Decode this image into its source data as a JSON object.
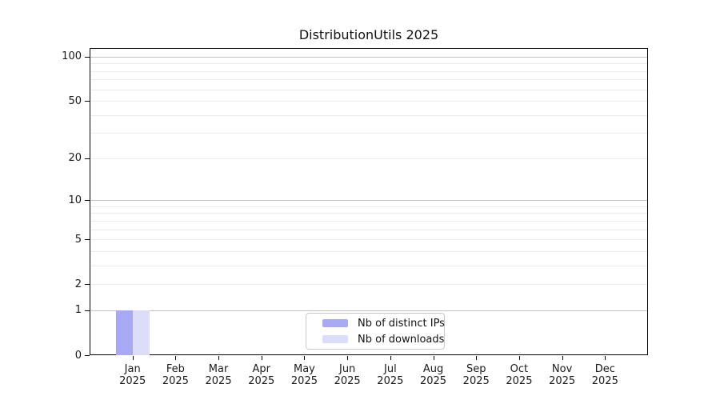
{
  "title": "DistributionUtils 2025",
  "chart_data": {
    "type": "bar",
    "title": "DistributionUtils 2025",
    "xlabel": "",
    "ylabel": "",
    "categories": [
      "Jan 2025",
      "Feb 2025",
      "Mar 2025",
      "Apr 2025",
      "May 2025",
      "Jun 2025",
      "Jul 2025",
      "Aug 2025",
      "Sep 2025",
      "Oct 2025",
      "Nov 2025",
      "Dec 2025"
    ],
    "series": [
      {
        "name": "Nb of distinct IPs",
        "color": "#a8a9f4",
        "values": [
          1,
          0,
          0,
          0,
          0,
          0,
          0,
          0,
          0,
          0,
          0,
          0
        ]
      },
      {
        "name": "Nb of downloads",
        "color": "#dcddf9",
        "values": [
          1,
          0,
          0,
          0,
          0,
          0,
          0,
          0,
          0,
          0,
          0,
          0
        ]
      }
    ],
    "y_axis": {
      "scale": "log1p",
      "ticks": [
        0,
        1,
        2,
        5,
        10,
        20,
        50,
        100
      ],
      "ylim": [
        0,
        114.7
      ],
      "gridlines_major": [
        1,
        10,
        100
      ],
      "gridlines_minor": [
        2,
        3,
        4,
        5,
        6,
        7,
        8,
        9,
        20,
        30,
        40,
        50,
        60,
        70,
        80,
        90
      ]
    },
    "grid": true,
    "legend": {
      "position": "bottom-center",
      "entries": [
        "Nb of distinct IPs",
        "Nb of downloads"
      ]
    }
  },
  "colors": {
    "background": "#ffffff",
    "frame": "#000000",
    "text": "#1a1a1a",
    "gridline_major": "#c2c2c2",
    "gridline_minor": "#ebebeb",
    "legend_border": "#c9c9c9",
    "bar_distinct_ips": "#a8a9f4",
    "bar_downloads": "#dcddf9"
  }
}
